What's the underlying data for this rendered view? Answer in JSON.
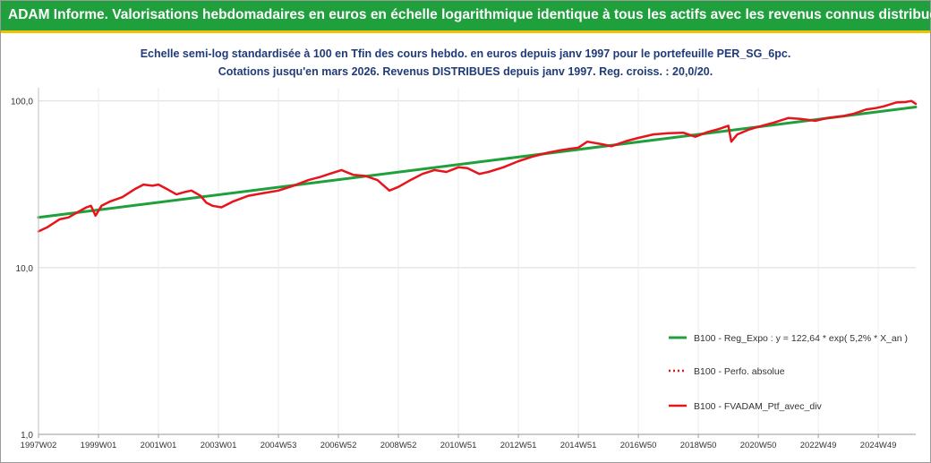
{
  "header": {
    "title": "ADAM Informe. Valorisations hebdomadaires en euros en échelle logarithmique identique à tous les actifs avec les revenus connus distribués"
  },
  "subtitle": {
    "line1": "Echelle semi-log standardisée à 100 en Tfin des cours hebdo.  en euros depuis janv 1997 pour le portefeuille PER_SG_6pc.",
    "line2": "Cotations jusqu'en mars 2026. Revenus DISTRIBUES depuis janv 1997. Reg. croiss. : 20,0/20."
  },
  "colors": {
    "header_bg": "#1fa03c",
    "header_border": "#f2c200",
    "regression": "#1fa03c",
    "performance": "#e8141c"
  },
  "chart_data": {
    "type": "line",
    "y_scale": "log",
    "ylim": [
      1,
      120
    ],
    "xlim": [
      1997.0,
      2026.25
    ],
    "yticks": [
      {
        "value": 1,
        "label": "1,0"
      },
      {
        "value": 10,
        "label": "10,0"
      },
      {
        "value": 100,
        "label": "100,0"
      }
    ],
    "xticks": [
      {
        "value": 1997.0,
        "label": "1997W02"
      },
      {
        "value": 1999.0,
        "label": "1999W01"
      },
      {
        "value": 2001.0,
        "label": "2001W01"
      },
      {
        "value": 2003.0,
        "label": "2003W01"
      },
      {
        "value": 2005.0,
        "label": "2004W53"
      },
      {
        "value": 2007.0,
        "label": "2006W52"
      },
      {
        "value": 2009.0,
        "label": "2008W52"
      },
      {
        "value": 2011.0,
        "label": "2010W51"
      },
      {
        "value": 2013.0,
        "label": "2012W51"
      },
      {
        "value": 2015.0,
        "label": "2014W51"
      },
      {
        "value": 2017.0,
        "label": "2016W50"
      },
      {
        "value": 2019.0,
        "label": "2018W50"
      },
      {
        "value": 2021.0,
        "label": "2020W50"
      },
      {
        "value": 2023.0,
        "label": "2022W49"
      },
      {
        "value": 2025.0,
        "label": "2024W49"
      }
    ],
    "legend_position": "bottom-right",
    "series": [
      {
        "name": "B100 - Reg_Expo : y = 122,64 * exp( 5,2% * X_an )",
        "style": "solid-thin",
        "x": [
          1997.0,
          2026.25
        ],
        "y": [
          20.0,
          92.0
        ]
      },
      {
        "name": "B100 - Perfo. absolue",
        "style": "dotted",
        "x": [],
        "y": []
      },
      {
        "name": "B100 - FVADAM_Ptf_avec_div",
        "style": "solid-thick",
        "x": [
          1997.0,
          1997.3,
          1997.7,
          1998.0,
          1998.3,
          1998.6,
          1998.75,
          1998.9,
          1999.1,
          1999.4,
          1999.8,
          2000.2,
          2000.5,
          2000.8,
          2001.0,
          2001.3,
          2001.6,
          2001.9,
          2002.1,
          2002.4,
          2002.6,
          2002.8,
          2003.1,
          2003.5,
          2004.0,
          2004.5,
          2005.0,
          2005.5,
          2006.0,
          2006.4,
          2006.7,
          2007.1,
          2007.5,
          2007.9,
          2008.3,
          2008.7,
          2009.0,
          2009.4,
          2009.8,
          2010.2,
          2010.6,
          2011.0,
          2011.3,
          2011.7,
          2012.0,
          2012.5,
          2013.0,
          2013.5,
          2014.0,
          2014.5,
          2015.0,
          2015.3,
          2015.8,
          2016.1,
          2016.6,
          2017.0,
          2017.5,
          2018.0,
          2018.5,
          2018.9,
          2019.3,
          2019.7,
          2020.0,
          2020.1,
          2020.3,
          2020.7,
          2021.0,
          2021.5,
          2022.0,
          2022.4,
          2022.9,
          2023.3,
          2023.8,
          2024.2,
          2024.6,
          2024.9,
          2025.2,
          2025.6,
          2025.9,
          2026.1,
          2026.25
        ],
        "y": [
          16.5,
          17.5,
          19.5,
          20.0,
          21.5,
          23.0,
          23.5,
          20.5,
          23.5,
          25.0,
          26.5,
          29.5,
          31.5,
          31.0,
          31.5,
          29.5,
          27.5,
          28.5,
          29.0,
          27.0,
          24.5,
          23.5,
          23.0,
          25.0,
          27.0,
          28.0,
          29.0,
          31.0,
          33.5,
          35.0,
          36.5,
          38.5,
          36.0,
          35.5,
          33.5,
          29.0,
          30.5,
          33.5,
          36.5,
          38.5,
          37.5,
          40.0,
          39.5,
          36.5,
          37.5,
          40.0,
          43.5,
          46.5,
          49.0,
          51.0,
          52.5,
          57.0,
          55.0,
          53.5,
          57.5,
          60.0,
          63.0,
          64.0,
          64.5,
          61.0,
          65.0,
          68.0,
          71.0,
          57.0,
          63.0,
          67.5,
          70.0,
          74.0,
          79.0,
          78.0,
          76.0,
          79.0,
          81.0,
          84.0,
          89.0,
          90.5,
          93.0,
          98.0,
          98.5,
          100.0,
          96.0
        ]
      }
    ]
  }
}
